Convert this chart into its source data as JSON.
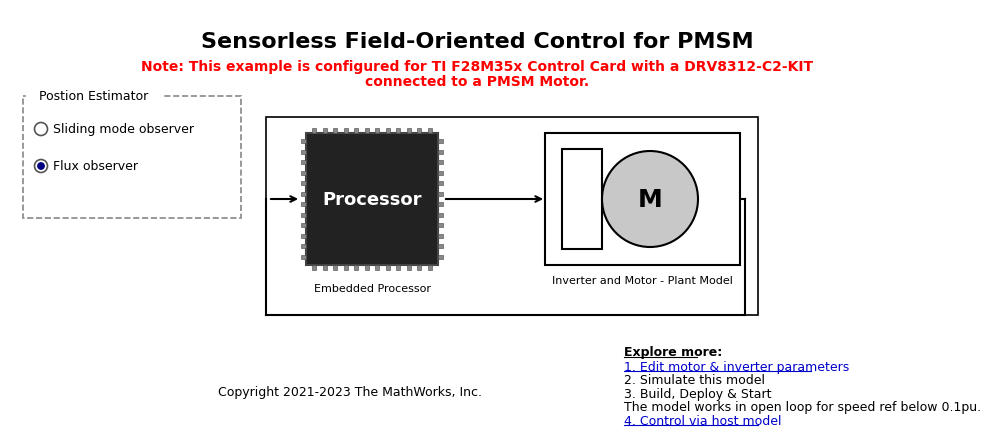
{
  "title": "Sensorless Field-Oriented Control for PMSM",
  "note_line1": "Note: This example is configured for TI F28M35x Control Card with a DRV8312-C2-KIT",
  "note_line2": "connected to a PMSM Motor.",
  "position_estimator_label": "Postion Estimator",
  "radio1_label": "Sliding mode observer",
  "radio2_label": "Flux observer",
  "processor_label": "Processor",
  "embedded_label": "Embedded Processor",
  "inverter_label": "Inverter and Motor - Plant Model",
  "motor_letter": "M",
  "copyright": "Copyright 2021-2023 The MathWorks, Inc.",
  "explore_title": "Explore more:",
  "explore_items": [
    "1. Edit motor & inverter parameters",
    "2. Simulate this model",
    "3. Build, Deploy & Start",
    "The model works in open loop for speed ref below 0.1pu.",
    "4. Control via host model"
  ],
  "link_item_indices": [
    0,
    4
  ],
  "bg_color": "#ffffff",
  "title_color": "#000000",
  "note_color": "#ff0000",
  "link_color": "#0000cc",
  "normal_text_color": "#000000",
  "chip_dark": "#222222",
  "chip_pin_color": "#888888",
  "motor_fill": "#c8c8c8",
  "dashed_box_color": "#888888",
  "main_box_color": "#000000"
}
